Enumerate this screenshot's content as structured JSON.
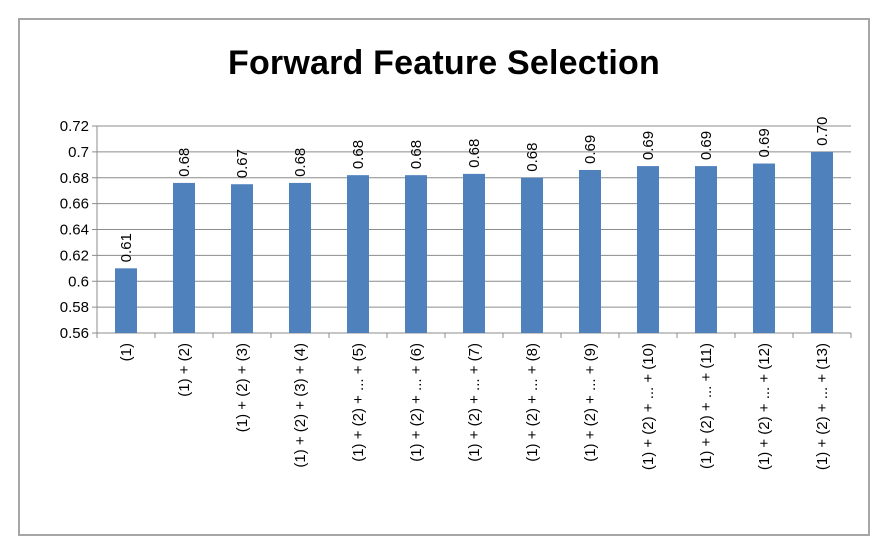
{
  "chart_data": {
    "type": "bar",
    "title": "Forward Feature Selection",
    "xlabel": "",
    "ylabel": "",
    "categories": [
      "(1)",
      "(1) + (2)",
      "(1) + (2) + (3)",
      "(1) + (2) + (3) + (4)",
      "(1) + (2) + ... + (5)",
      "(1) + (2) + ... + (6)",
      "(1) + (2) + ... + (7)",
      "(1) + (2) + ... + (8)",
      "(1) + (2) + ... + (9)",
      "(1) + (2) + ... + (10)",
      "(1) + (2) + ... + (11)",
      "(1) + (2) + ... + (12)",
      "(1) + (2) + ... + (13)"
    ],
    "values": [
      0.61,
      0.676,
      0.675,
      0.676,
      0.682,
      0.682,
      0.683,
      0.68,
      0.686,
      0.689,
      0.689,
      0.691,
      0.7
    ],
    "data_labels": [
      "0.61",
      "0.68",
      "0.67",
      "0.68",
      "0.68",
      "0.68",
      "0.68",
      "0.68",
      "0.69",
      "0.69",
      "0.69",
      "0.69",
      "0.70"
    ],
    "yticks": [
      "0.56",
      "0.58",
      "0.6",
      "0.62",
      "0.64",
      "0.66",
      "0.68",
      "0.7",
      "0.72"
    ],
    "ylim": [
      0.56,
      0.72
    ],
    "grid": true,
    "legend": "none",
    "bar_color": "#4f81bd",
    "grid_color": "#8c8c8c"
  }
}
